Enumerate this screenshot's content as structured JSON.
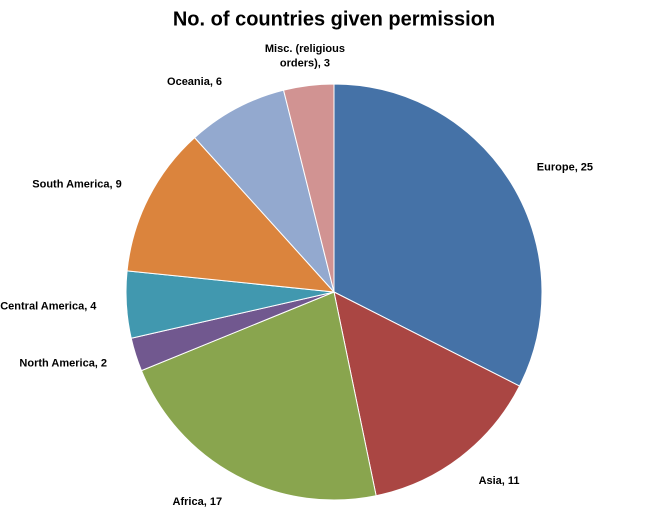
{
  "chart_data": {
    "type": "pie",
    "title": "No. of countries given permission",
    "values": [
      25,
      11,
      17,
      2,
      4,
      9,
      6,
      3
    ],
    "value_labels": [
      "Europe, 25",
      "Asia, 11",
      "Africa, 17",
      "North America, 2",
      "Central America, 4",
      "South America, 9",
      "Oceania, 6",
      "Misc. (religious orders), 3"
    ],
    "colors": [
      "#4572a7",
      "#aa4643",
      "#89a54e",
      "#71588f",
      "#4198af",
      "#db843d",
      "#93a9cf",
      "#d19392"
    ]
  }
}
